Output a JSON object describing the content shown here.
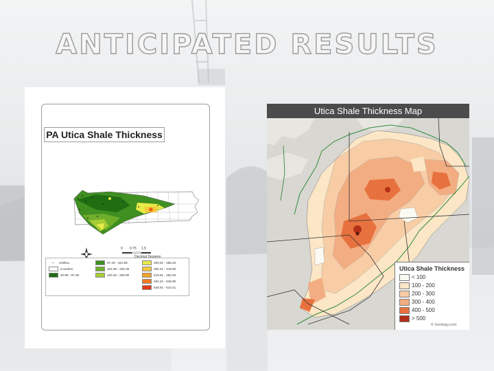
{
  "slide": {
    "title": "ANTICIPATED RESULTS"
  },
  "left_map": {
    "title": "PA Utica Shale Thickness",
    "scale_bar": {
      "ticks": [
        "0",
        "0.75",
        "1.5"
      ],
      "unit": "Decimal Degrees"
    },
    "legend": [
      {
        "label": "UWELL",
        "color": "#333333",
        "symbol": "dot"
      },
      {
        "label": "Counties",
        "color": "#ffffff",
        "symbol": "box"
      },
      {
        "label": "32.89 - 97.39",
        "color": "#1f6e12"
      },
      {
        "label": "97.40 - 161.89",
        "color": "#3f8f21"
      },
      {
        "label": "161.90 - 226.39",
        "color": "#6fae2b"
      },
      {
        "label": "226.40 - 290.90",
        "color": "#a8cc34"
      },
      {
        "label": "290.91 - 355.40",
        "color": "#e7ea47"
      },
      {
        "label": "355.41 - 419.90",
        "color": "#f4c93a"
      },
      {
        "label": "419.91 - 484.40",
        "color": "#f2a32a"
      },
      {
        "label": "484.41 - 548.90",
        "color": "#ef7a1f"
      },
      {
        "label": "548.91 - 613.41",
        "color": "#e63a16"
      }
    ]
  },
  "right_map": {
    "title": "Utica Shale Thickness Map",
    "legend_title": "Utica Shale Thickness",
    "legend": [
      {
        "label": "< 100",
        "color": "#fbfaf2"
      },
      {
        "label": "100 - 200",
        "color": "#fbe6c6"
      },
      {
        "label": "200 - 300",
        "color": "#f8cda5"
      },
      {
        "label": "300 - 400",
        "color": "#f3ad82"
      },
      {
        "label": "400 - 500",
        "color": "#e7723f"
      },
      {
        "label": "> 500",
        "color": "#b43017"
      }
    ],
    "credit": "© Geology.com"
  }
}
